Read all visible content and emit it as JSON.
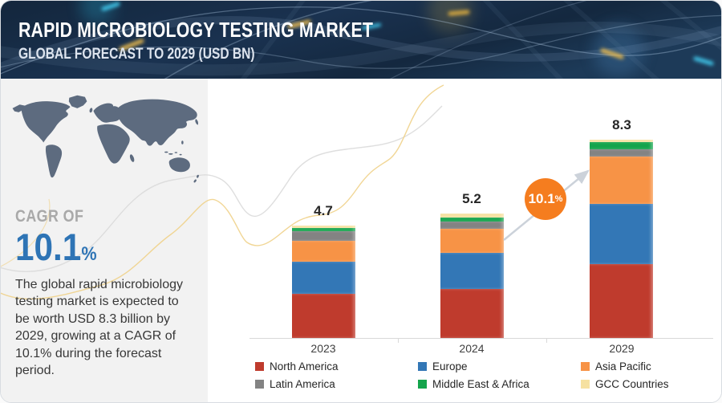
{
  "header": {
    "title": "RAPID MICROBIOLOGY TESTING MARKET",
    "subtitle": "GLOBAL FORECAST TO 2029 (USD BN)",
    "bg_color": "#16293f"
  },
  "sidebar": {
    "cagr_label": "CAGR OF",
    "cagr_value": "10.1",
    "cagr_unit": "%",
    "cagr_color": "#2e74b5",
    "description": "The global rapid microbiology testing market is expected to be worth USD 8.3 billion by 2029, growing at a CAGR of 10.1% during the forecast period."
  },
  "chart": {
    "growth_badge": {
      "value": "10.1",
      "unit": "%",
      "color": "#f57d1f"
    }
  },
  "chart_data": {
    "type": "bar",
    "stacked": true,
    "title": "RAPID MICROBIOLOGY TESTING MARKET — GLOBAL FORECAST TO 2029 (USD BN)",
    "categories": [
      "2023",
      "2024",
      "2029"
    ],
    "totals": [
      "4.7",
      "5.2",
      "8.3"
    ],
    "series": [
      {
        "name": "North America",
        "color": "#bf3b2d",
        "values": [
          1.85,
          2.05,
          3.1
        ]
      },
      {
        "name": "Europe",
        "color": "#3377b6",
        "values": [
          1.35,
          1.5,
          2.5
        ]
      },
      {
        "name": "Asia Pacific",
        "color": "#f79346",
        "values": [
          0.85,
          1.0,
          2.0
        ]
      },
      {
        "name": "Latin America",
        "color": "#838383",
        "values": [
          0.4,
          0.33,
          0.28
        ]
      },
      {
        "name": "Middle East & Africa",
        "color": "#14a44c",
        "values": [
          0.15,
          0.17,
          0.3
        ]
      },
      {
        "name": "GCC Countries",
        "color": "#f6e1a1",
        "values": [
          0.1,
          0.15,
          0.12
        ]
      }
    ],
    "ylabel": "USD BN",
    "ylim": [
      0,
      9
    ],
    "grid": false,
    "legend_position": "bottom",
    "annotation": "CAGR 10.1% from 2024 to 2029"
  }
}
